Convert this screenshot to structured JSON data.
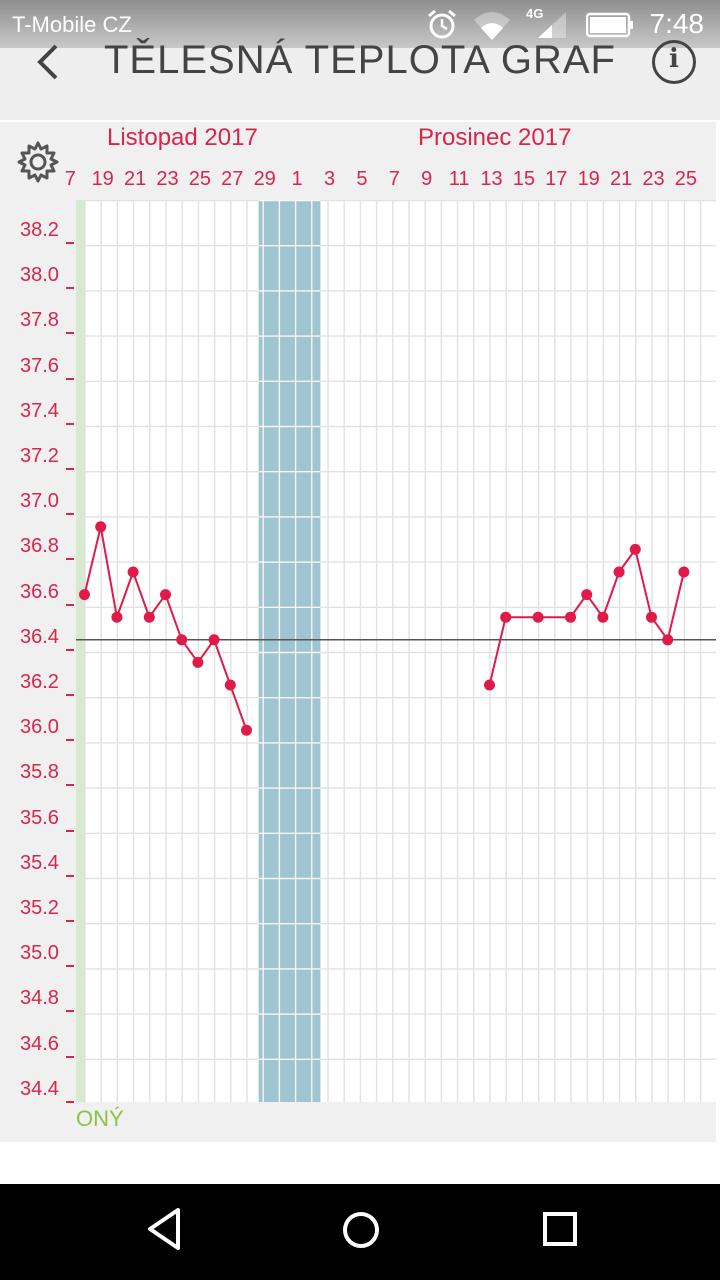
{
  "status": {
    "carrier": "T-Mobile CZ",
    "time": "7:48",
    "network": "4G"
  },
  "header": {
    "title": "TĚLESNÁ TEPLOTA GRAF",
    "back_icon": "back-arrow-icon",
    "info_icon": "info-icon"
  },
  "toolbar": {
    "settings_icon": "gear-icon"
  },
  "months": [
    {
      "label": "Listopad 2017"
    },
    {
      "label": "Prosinec 2017"
    }
  ],
  "day_labels": [
    "7",
    "19",
    "21",
    "23",
    "25",
    "27",
    "29",
    "1",
    "3",
    "5",
    "7",
    "9",
    "11",
    "13",
    "15",
    "17",
    "19",
    "21",
    "23",
    "25"
  ],
  "phase_label": "ONÝ",
  "colors": {
    "series": "#e01b4a",
    "label": "#d7264b",
    "fertile_band": "#9fc6d0",
    "phase_band": "#d6ead0",
    "phase_text": "#8bc34a"
  },
  "chart_data": {
    "type": "line",
    "y_ticks": [
      "38.2",
      "38.0",
      "37.8",
      "37.6",
      "37.4",
      "37.2",
      "37.0",
      "36.8",
      "36.6",
      "36.4",
      "36.2",
      "36.0",
      "35.8",
      "35.6",
      "35.4",
      "35.2",
      "35.0",
      "34.8",
      "34.6",
      "34.4"
    ],
    "ylim": [
      34.4,
      38.2
    ],
    "baseline": 36.4,
    "shaded_days": [
      "28 Nov",
      "29 Nov",
      "30 Nov",
      "1 Dec"
    ],
    "series": [
      {
        "points": [
          {
            "day": "17 Nov",
            "value": 36.6
          },
          {
            "day": "18 Nov",
            "value": 36.9
          },
          {
            "day": "19 Nov",
            "value": 36.5
          },
          {
            "day": "20 Nov",
            "value": 36.7
          },
          {
            "day": "21 Nov",
            "value": 36.5
          },
          {
            "day": "22 Nov",
            "value": 36.6
          },
          {
            "day": "23 Nov",
            "value": 36.4
          },
          {
            "day": "24 Nov",
            "value": 36.3
          },
          {
            "day": "25 Nov",
            "value": 36.4
          },
          {
            "day": "26 Nov",
            "value": 36.2
          },
          {
            "day": "27 Nov",
            "value": 36.0
          }
        ]
      },
      {
        "points": [
          {
            "day": "12 Dec",
            "value": 36.2
          },
          {
            "day": "13 Dec",
            "value": 36.5
          },
          {
            "day": "15 Dec",
            "value": 36.5
          },
          {
            "day": "17 Dec",
            "value": 36.5
          },
          {
            "day": "18 Dec",
            "value": 36.6
          },
          {
            "day": "19 Dec",
            "value": 36.5
          },
          {
            "day": "20 Dec",
            "value": 36.7
          },
          {
            "day": "21 Dec",
            "value": 36.8
          },
          {
            "day": "22 Dec",
            "value": 36.5
          },
          {
            "day": "23 Dec",
            "value": 36.4
          },
          {
            "day": "24 Dec",
            "value": 36.7
          }
        ]
      }
    ]
  }
}
